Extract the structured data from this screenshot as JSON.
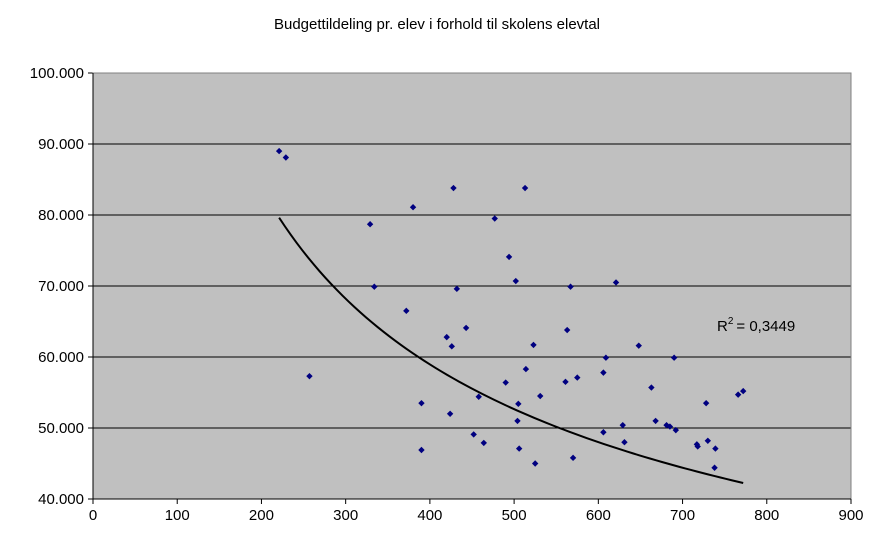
{
  "chart_data": {
    "type": "scatter",
    "title": "Budgettildeling pr. elev i forhold til skolens elevtal",
    "xlabel": "",
    "ylabel": "",
    "xlim": [
      0,
      900
    ],
    "ylim": [
      40000,
      100000
    ],
    "x_ticks": [
      0,
      100,
      200,
      300,
      400,
      500,
      600,
      700,
      800,
      900
    ],
    "x_tick_labels": [
      "0",
      "100",
      "200",
      "300",
      "400",
      "500",
      "600",
      "700",
      "800",
      "900"
    ],
    "y_ticks": [
      40000,
      50000,
      60000,
      70000,
      80000,
      90000,
      100000
    ],
    "y_tick_labels": [
      "40.000",
      "50.000",
      "60.000",
      "70.000",
      "80.000",
      "90.000",
      "100.000"
    ],
    "grid": "horizontal",
    "plot_background": "#c0c0c0",
    "marker_color": "#000080",
    "points": [
      [
        221,
        89000
      ],
      [
        229,
        88100
      ],
      [
        257,
        57300
      ],
      [
        329,
        78700
      ],
      [
        334,
        69900
      ],
      [
        372,
        66500
      ],
      [
        380,
        81100
      ],
      [
        390,
        53500
      ],
      [
        390,
        46900
      ],
      [
        420,
        62800
      ],
      [
        424,
        52000
      ],
      [
        426,
        61500
      ],
      [
        428,
        83800
      ],
      [
        432,
        69600
      ],
      [
        443,
        64100
      ],
      [
        452,
        49100
      ],
      [
        458,
        54400
      ],
      [
        464,
        47900
      ],
      [
        477,
        79500
      ],
      [
        490,
        56400
      ],
      [
        494,
        74100
      ],
      [
        502,
        70700
      ],
      [
        504,
        51000
      ],
      [
        505,
        53400
      ],
      [
        506,
        47100
      ],
      [
        513,
        83800
      ],
      [
        514,
        58300
      ],
      [
        523,
        61700
      ],
      [
        525,
        45000
      ],
      [
        531,
        54500
      ],
      [
        561,
        56500
      ],
      [
        563,
        63800
      ],
      [
        567,
        69900
      ],
      [
        570,
        45800
      ],
      [
        575,
        57100
      ],
      [
        606,
        57800
      ],
      [
        606,
        49400
      ],
      [
        609,
        59900
      ],
      [
        621,
        70500
      ],
      [
        629,
        50400
      ],
      [
        631,
        48000
      ],
      [
        648,
        61600
      ],
      [
        663,
        55700
      ],
      [
        668,
        51000
      ],
      [
        681,
        50400
      ],
      [
        685,
        50200
      ],
      [
        690,
        59900
      ],
      [
        692,
        49700
      ],
      [
        717,
        47700
      ],
      [
        718,
        47400
      ],
      [
        728,
        53500
      ],
      [
        730,
        48200
      ],
      [
        738,
        44400
      ],
      [
        739,
        47100
      ],
      [
        766,
        54700
      ],
      [
        772,
        55200
      ]
    ],
    "trendline": {
      "type": "power",
      "x_range": [
        221,
        772
      ],
      "coefficient": 1226000,
      "exponent": -0.5065,
      "r2_label": "R",
      "r2_value": "= 0,3449"
    }
  }
}
